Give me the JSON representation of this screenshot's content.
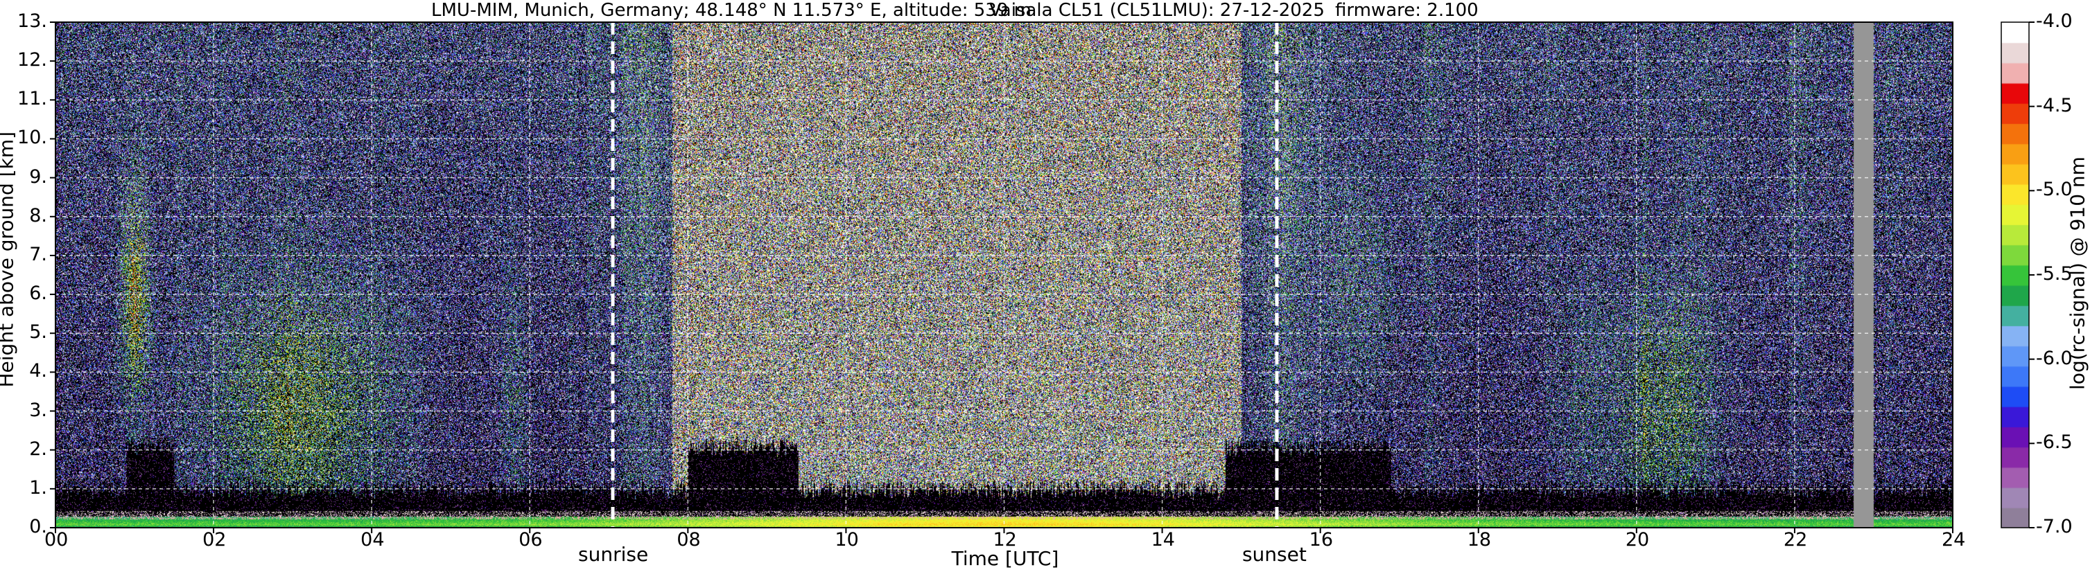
{
  "title": {
    "site": "LMU-MIM, Munich, Germany; 48.148° N 11.573° E, altitude: 539 m",
    "instrument": "Vaisala CL51 (CL51LMU): 27-12-2025",
    "firmware": "firmware: 2.100"
  },
  "chart_data": {
    "type": "heatmap",
    "xlabel": "Time [UTC]",
    "ylabel": "Height above ground [km]",
    "xlim": [
      0,
      24
    ],
    "ylim": [
      0,
      13
    ],
    "x_ticks": [
      "00",
      "02",
      "04",
      "06",
      "08",
      "10",
      "12",
      "14",
      "16",
      "18",
      "20",
      "22",
      "24"
    ],
    "y_ticks": [
      "0.",
      "1.",
      "2.",
      "3.",
      "4.",
      "5.",
      "6.",
      "7.",
      "8.",
      "9.",
      "10.",
      "11.",
      "12.",
      "13."
    ],
    "grid": true,
    "events": [
      {
        "label": "sunrise",
        "time": 7.05
      },
      {
        "label": "sunset",
        "time": 15.45
      }
    ],
    "missing_data": {
      "start": 22.75,
      "end": 23.0
    },
    "colorbar": {
      "label": "log(rc-signal) @ 910 nm",
      "range": [
        -7.0,
        -4.0
      ],
      "ticks": [
        "-4.0",
        "-4.5",
        "-5.0",
        "-5.5",
        "-6.0",
        "-6.5",
        "-7.0"
      ],
      "colors": [
        "#8f7f9a",
        "#a087b5",
        "#a35db0",
        "#8a2aa8",
        "#6a10b4",
        "#3a18d8",
        "#1e4cf5",
        "#3d78f8",
        "#5f97f7",
        "#86b3f4",
        "#44b0a0",
        "#1fa64a",
        "#36c43a",
        "#7ed93c",
        "#b8ea3a",
        "#e6f535",
        "#fbe62b",
        "#fcc31d",
        "#f99f13",
        "#f4720c",
        "#ee3d0a",
        "#e8070a",
        "#f0b0b0",
        "#ead8d8",
        "#ffffff"
      ]
    }
  }
}
